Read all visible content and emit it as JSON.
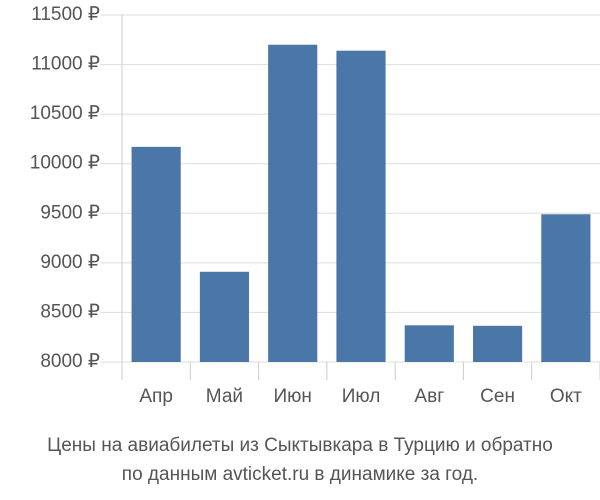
{
  "chart_data": {
    "type": "bar",
    "title": [
      "Цены на авиабилеты из Сыктывкара в Турцию и обратно",
      "по данным avticket.ru в динамике за год."
    ],
    "categories": [
      "Апр",
      "Май",
      "Июн",
      "Июл",
      "Авг",
      "Сен",
      "Окт"
    ],
    "values": [
      10170,
      8910,
      11200,
      11140,
      8370,
      8365,
      9490
    ],
    "color": "#4a76a8",
    "ylim": [
      8000,
      11500
    ],
    "yticks": [
      {
        "value": 8000,
        "label": "8000 ₽"
      },
      {
        "value": 8500,
        "label": "8500 ₽"
      },
      {
        "value": 9000,
        "label": "9000 ₽"
      },
      {
        "value": 9500,
        "label": "9500 ₽"
      },
      {
        "value": 10000,
        "label": "10000 ₽"
      },
      {
        "value": 10500,
        "label": "10500 ₽"
      },
      {
        "value": 11000,
        "label": "11000 ₽"
      },
      {
        "value": 11500,
        "label": "11500 ₽"
      }
    ],
    "grid": true
  }
}
